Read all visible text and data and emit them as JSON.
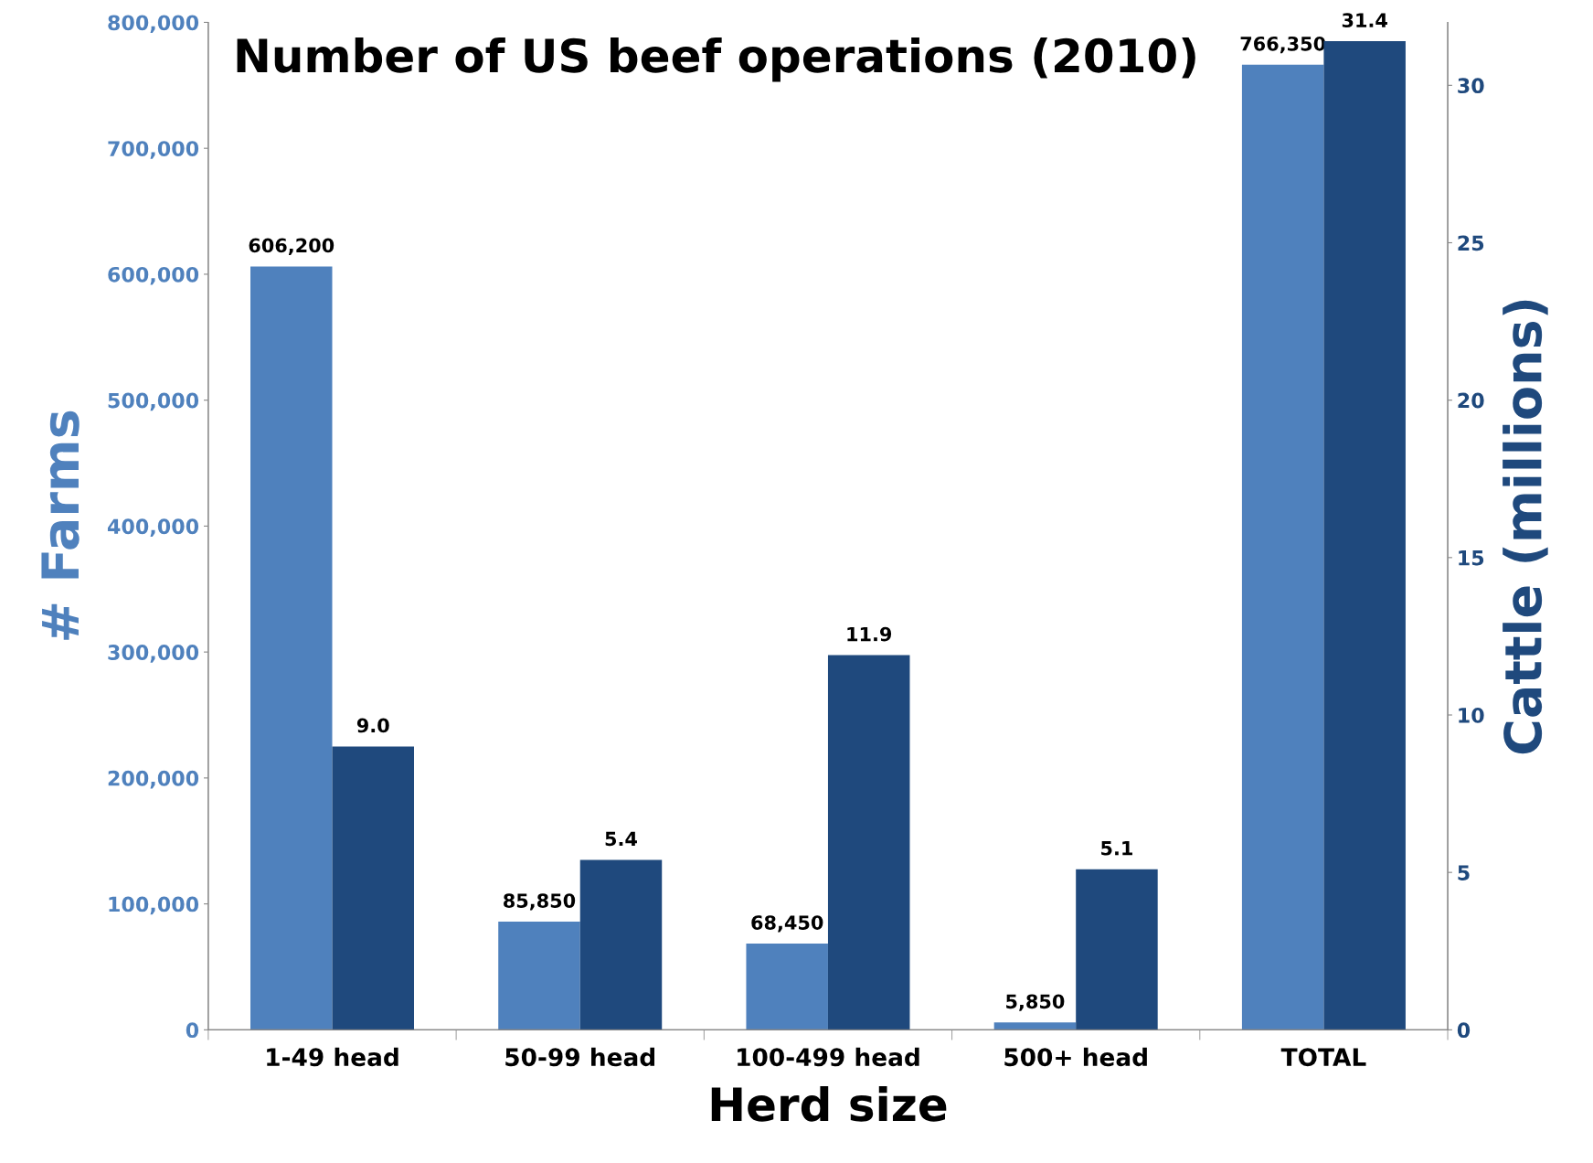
{
  "chart_data": {
    "type": "bar",
    "title": "Number of US beef operations (2010)",
    "xlabel": "Herd size",
    "ylabel": "# Farms",
    "y2label": "Cattle (millions)",
    "categories": [
      "1-49 head",
      "50-99 head",
      "100-499 head",
      "500+ head",
      "TOTAL"
    ],
    "series": [
      {
        "color": "#4f81bd",
        "values": [
          606200,
          85850,
          68450,
          5850,
          766350
        ],
        "value_labels": [
          "606,200",
          "85,850",
          "68,450",
          "5,850",
          "766,350"
        ]
      },
      {
        "color": "#1f497d",
        "axis": "y2",
        "values": [
          9.0,
          5.4,
          11.9,
          5.1,
          31.4
        ],
        "value_labels": [
          "9.0",
          "5.4",
          "11.9",
          "5.1",
          "31.4"
        ]
      }
    ],
    "ylim": [
      0,
      800000
    ],
    "yticks": [
      {
        "value": 0,
        "label": "0"
      },
      {
        "value": 100000,
        "label": "100,000"
      },
      {
        "value": 200000,
        "label": "200,000"
      },
      {
        "value": 300000,
        "label": "300,000"
      },
      {
        "value": 400000,
        "label": "400,000"
      },
      {
        "value": 500000,
        "label": "500,000"
      },
      {
        "value": 600000,
        "label": "600,000"
      },
      {
        "value": 700000,
        "label": "700,000"
      },
      {
        "value": 800000,
        "label": "800,000"
      }
    ],
    "y2lim": [
      0,
      32
    ],
    "y2ticks": [
      0,
      5,
      10,
      15,
      20,
      25,
      30
    ],
    "grid": false,
    "legend": false
  }
}
